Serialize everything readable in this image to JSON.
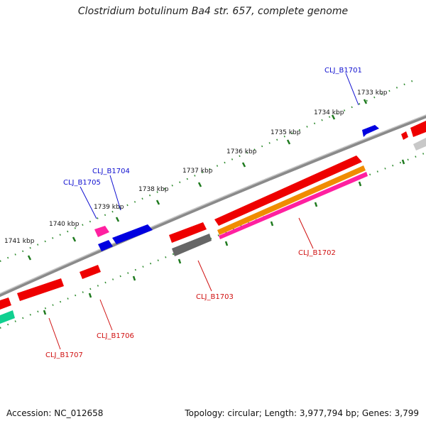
{
  "title": "Clostridium botulinum Ba4 str. 657, complete genome",
  "footer": {
    "accession": "Accession: NC_012658",
    "summary": "Topology: circular; Length: 3,977,794 bp; Genes: 3,799"
  },
  "colors": {
    "backbone": "#8a8a8a",
    "forward_tick": "#2e8b2e",
    "reverse_tick": "#2e8b2e",
    "label_forward": "#1010d0",
    "label_reverse": "#d01010",
    "red": "#ee0000",
    "blue": "#0000e0",
    "pink": "#ff20a0",
    "orange": "#f08c00",
    "gray": "#666666",
    "lightgray": "#c8c8c8",
    "green": "#10d090"
  },
  "scale_labels": [
    "1733 kbp",
    "1734 kbp",
    "1735 kbp",
    "1736 kbp",
    "1737 kbp",
    "1738 kbp",
    "1739 kbp",
    "1740 kbp",
    "1741 kbp"
  ],
  "gene_labels": {
    "forward": [
      "CLJ_B1701",
      "CLJ_B1704",
      "CLJ_B1705"
    ],
    "reverse": [
      "CLJ_B1702",
      "CLJ_B1703",
      "CLJ_B1706",
      "CLJ_B1707"
    ]
  }
}
